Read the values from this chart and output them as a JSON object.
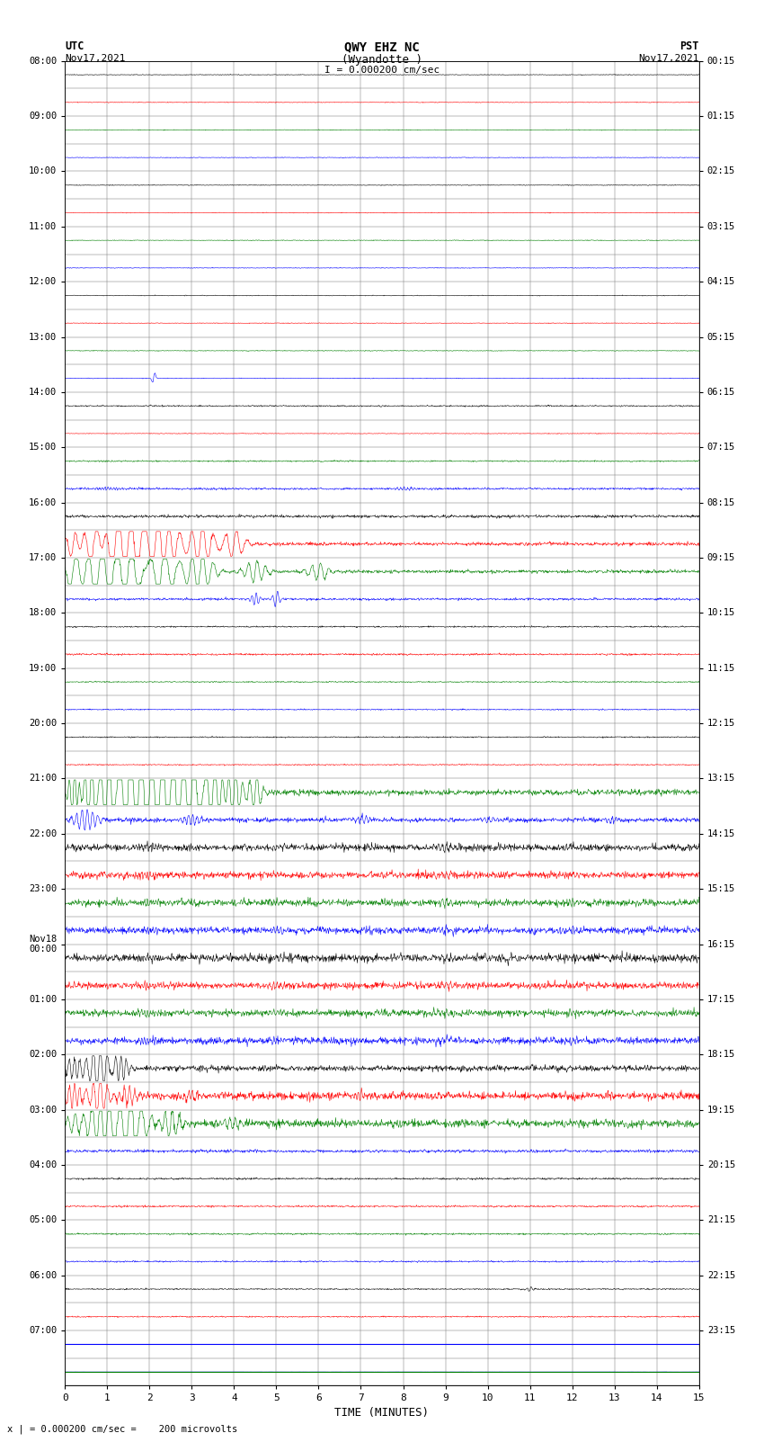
{
  "title_line1": "QWY EHZ NC",
  "title_line2": "(Wyandotte )",
  "title_line3": "I = 0.000200 cm/sec",
  "left_header_line1": "UTC",
  "left_header_line2": "Nov17,2021",
  "right_header_line1": "PST",
  "right_header_line2": "Nov17,2021",
  "xlabel": "TIME (MINUTES)",
  "footer": "x | = 0.000200 cm/sec =    200 microvolts",
  "x_min": 0,
  "x_max": 15,
  "total_rows": 48,
  "colors_cycle": [
    "black",
    "red",
    "green",
    "blue"
  ],
  "bg_color": "white",
  "grid_color": "#888888"
}
